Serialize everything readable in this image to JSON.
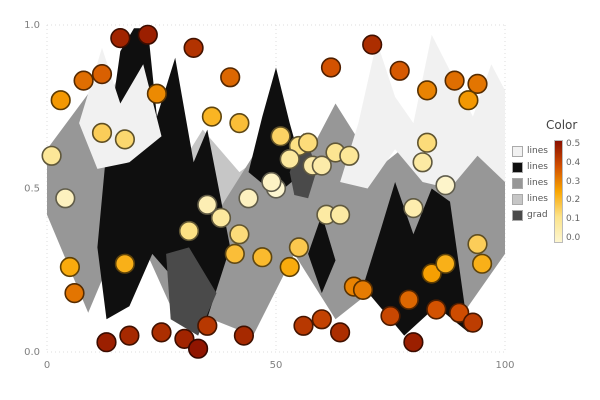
{
  "legend": {
    "title": "Color",
    "items": [
      {
        "label": "lines",
        "color": "#f1f1f1"
      },
      {
        "label": "lines",
        "color": "#0f0f0f"
      },
      {
        "label": "lines",
        "color": "#979797"
      },
      {
        "label": "lines",
        "color": "#c6c6c6"
      },
      {
        "label": "grad",
        "color": "#4a4a4a"
      }
    ],
    "colorbar": {
      "ticks": [
        "0.5",
        "0.4",
        "0.3",
        "0.2",
        "0.1",
        "0.0"
      ],
      "min": 0.0,
      "max": 0.5,
      "stops": [
        {
          "v": 0.0,
          "color": "#fdf6d0"
        },
        {
          "v": 0.125,
          "color": "#fce38a"
        },
        {
          "v": 0.25,
          "color": "#f9a602"
        },
        {
          "v": 0.375,
          "color": "#d14f01"
        },
        {
          "v": 0.5,
          "color": "#8a1000"
        }
      ]
    }
  },
  "chart_data": {
    "type": "scatter",
    "title": "",
    "xlabel": "",
    "ylabel": "",
    "grid": true,
    "axes": {
      "x": {
        "range": [
          0,
          100
        ],
        "ticks": [
          0,
          50,
          100
        ],
        "tick_labels": [
          "0",
          "50",
          "100"
        ]
      },
      "y": {
        "range": [
          0,
          1
        ],
        "ticks": [
          0,
          0.5,
          1
        ],
        "tick_labels": [
          "0.0",
          "0.5",
          "1.0"
        ]
      }
    },
    "points": [
      {
        "x": 16,
        "y": 0.96,
        "c": 0.46
      },
      {
        "x": 22,
        "y": 0.97,
        "c": 0.47
      },
      {
        "x": 12,
        "y": 0.85,
        "c": 0.35
      },
      {
        "x": 32,
        "y": 0.93,
        "c": 0.43
      },
      {
        "x": 24,
        "y": 0.79,
        "c": 0.29
      },
      {
        "x": 3,
        "y": 0.77,
        "c": 0.27
      },
      {
        "x": 8,
        "y": 0.83,
        "c": 0.33
      },
      {
        "x": 40,
        "y": 0.84,
        "c": 0.34
      },
      {
        "x": 71,
        "y": 0.94,
        "c": 0.44
      },
      {
        "x": 62,
        "y": 0.87,
        "c": 0.37
      },
      {
        "x": 77,
        "y": 0.86,
        "c": 0.36
      },
      {
        "x": 83,
        "y": 0.8,
        "c": 0.3
      },
      {
        "x": 89,
        "y": 0.83,
        "c": 0.33
      },
      {
        "x": 94,
        "y": 0.82,
        "c": 0.32
      },
      {
        "x": 92,
        "y": 0.77,
        "c": 0.27
      },
      {
        "x": 36,
        "y": 0.72,
        "c": 0.22
      },
      {
        "x": 42,
        "y": 0.7,
        "c": 0.2
      },
      {
        "x": 12,
        "y": 0.67,
        "c": 0.17
      },
      {
        "x": 17,
        "y": 0.65,
        "c": 0.15
      },
      {
        "x": 1,
        "y": 0.6,
        "c": 0.1
      },
      {
        "x": 51,
        "y": 0.66,
        "c": 0.16
      },
      {
        "x": 55,
        "y": 0.63,
        "c": 0.13
      },
      {
        "x": 57,
        "y": 0.64,
        "c": 0.14
      },
      {
        "x": 63,
        "y": 0.61,
        "c": 0.11
      },
      {
        "x": 66,
        "y": 0.6,
        "c": 0.1
      },
      {
        "x": 53,
        "y": 0.59,
        "c": 0.09
      },
      {
        "x": 83,
        "y": 0.64,
        "c": 0.14
      },
      {
        "x": 58,
        "y": 0.57,
        "c": 0.07
      },
      {
        "x": 60,
        "y": 0.57,
        "c": 0.07
      },
      {
        "x": 4,
        "y": 0.47,
        "c": 0.03
      },
      {
        "x": 50,
        "y": 0.5,
        "c": 0.0
      },
      {
        "x": 49,
        "y": 0.52,
        "c": 0.02
      },
      {
        "x": 82,
        "y": 0.58,
        "c": 0.08
      },
      {
        "x": 87,
        "y": 0.51,
        "c": 0.01
      },
      {
        "x": 80,
        "y": 0.44,
        "c": 0.06
      },
      {
        "x": 61,
        "y": 0.42,
        "c": 0.08
      },
      {
        "x": 64,
        "y": 0.42,
        "c": 0.08
      },
      {
        "x": 38,
        "y": 0.41,
        "c": 0.09
      },
      {
        "x": 31,
        "y": 0.37,
        "c": 0.13
      },
      {
        "x": 44,
        "y": 0.47,
        "c": 0.03
      },
      {
        "x": 35,
        "y": 0.45,
        "c": 0.05
      },
      {
        "x": 42,
        "y": 0.36,
        "c": 0.14
      },
      {
        "x": 41,
        "y": 0.3,
        "c": 0.2
      },
      {
        "x": 17,
        "y": 0.27,
        "c": 0.23
      },
      {
        "x": 5,
        "y": 0.26,
        "c": 0.24
      },
      {
        "x": 6,
        "y": 0.18,
        "c": 0.32
      },
      {
        "x": 53,
        "y": 0.26,
        "c": 0.24
      },
      {
        "x": 55,
        "y": 0.32,
        "c": 0.18
      },
      {
        "x": 84,
        "y": 0.24,
        "c": 0.26
      },
      {
        "x": 87,
        "y": 0.27,
        "c": 0.23
      },
      {
        "x": 94,
        "y": 0.33,
        "c": 0.17
      },
      {
        "x": 95,
        "y": 0.27,
        "c": 0.23
      },
      {
        "x": 67,
        "y": 0.2,
        "c": 0.3
      },
      {
        "x": 69,
        "y": 0.19,
        "c": 0.31
      },
      {
        "x": 79,
        "y": 0.16,
        "c": 0.34
      },
      {
        "x": 47,
        "y": 0.29,
        "c": 0.21
      },
      {
        "x": 85,
        "y": 0.13,
        "c": 0.37
      },
      {
        "x": 90,
        "y": 0.12,
        "c": 0.38
      },
      {
        "x": 93,
        "y": 0.09,
        "c": 0.41
      },
      {
        "x": 80,
        "y": 0.03,
        "c": 0.47
      },
      {
        "x": 75,
        "y": 0.11,
        "c": 0.39
      },
      {
        "x": 64,
        "y": 0.06,
        "c": 0.44
      },
      {
        "x": 56,
        "y": 0.08,
        "c": 0.42
      },
      {
        "x": 43,
        "y": 0.05,
        "c": 0.45
      },
      {
        "x": 35,
        "y": 0.08,
        "c": 0.42
      },
      {
        "x": 30,
        "y": 0.04,
        "c": 0.46
      },
      {
        "x": 25,
        "y": 0.06,
        "c": 0.44
      },
      {
        "x": 13,
        "y": 0.03,
        "c": 0.47
      },
      {
        "x": 18,
        "y": 0.05,
        "c": 0.45
      },
      {
        "x": 33,
        "y": 0.01,
        "c": 0.49
      },
      {
        "x": 60,
        "y": 0.1,
        "c": 0.4
      }
    ],
    "polygons": [
      {
        "series": "lines",
        "color": "#c6c6c6",
        "pts": [
          [
            0,
            0.57
          ],
          [
            8,
            0.63
          ],
          [
            17,
            0.88
          ],
          [
            26,
            0.5
          ],
          [
            34,
            0.68
          ],
          [
            42,
            0.55
          ],
          [
            50,
            0.63
          ],
          [
            58,
            0.5
          ],
          [
            66,
            0.6
          ],
          [
            75,
            0.52
          ],
          [
            84,
            0.6
          ],
          [
            92,
            0.55
          ],
          [
            100,
            0.5
          ],
          [
            100,
            0.38
          ],
          [
            92,
            0.33
          ],
          [
            84,
            0.24
          ],
          [
            75,
            0.35
          ],
          [
            66,
            0.3
          ],
          [
            58,
            0.35
          ],
          [
            50,
            0.42
          ],
          [
            42,
            0.32
          ],
          [
            34,
            0.27
          ],
          [
            26,
            0.45
          ],
          [
            17,
            0.36
          ],
          [
            8,
            0.4
          ],
          [
            0,
            0.44
          ]
        ]
      },
      {
        "series": "lines",
        "color": "#979797",
        "pts": [
          [
            0,
            0.62
          ],
          [
            9,
            0.79
          ],
          [
            18,
            0.52
          ],
          [
            27,
            0.73
          ],
          [
            36,
            0.4
          ],
          [
            45,
            0.6
          ],
          [
            54,
            0.52
          ],
          [
            63,
            0.76
          ],
          [
            72,
            0.56
          ],
          [
            81,
            0.66
          ],
          [
            90,
            0.68
          ],
          [
            100,
            0.53
          ],
          [
            100,
            0.3
          ],
          [
            90,
            0.1
          ],
          [
            81,
            0.28
          ],
          [
            72,
            0.2
          ],
          [
            63,
            0.1
          ],
          [
            54,
            0.3
          ],
          [
            45,
            0.05
          ],
          [
            36,
            0.1
          ],
          [
            27,
            0.14
          ],
          [
            18,
            0.42
          ],
          [
            9,
            0.12
          ],
          [
            0,
            0.42
          ]
        ]
      },
      {
        "series": "lines",
        "color": "#0f0f0f",
        "pts": [
          [
            11,
            0.32
          ],
          [
            13,
            0.62
          ],
          [
            16,
            0.92
          ],
          [
            19,
            0.99
          ],
          [
            22,
            0.99
          ],
          [
            24,
            0.72
          ],
          [
            28,
            0.9
          ],
          [
            32,
            0.58
          ],
          [
            35,
            0.68
          ],
          [
            40,
            0.32
          ],
          [
            34,
            0.06
          ],
          [
            28,
            0.22
          ],
          [
            23,
            0.3
          ],
          [
            18,
            0.14
          ],
          [
            13,
            0.1
          ]
        ]
      },
      {
        "series": "lines",
        "color": "#0f0f0f",
        "pts": [
          [
            44,
            0.55
          ],
          [
            47,
            0.72
          ],
          [
            50,
            0.87
          ],
          [
            53,
            0.7
          ],
          [
            56,
            0.55
          ],
          [
            50,
            0.48
          ]
        ]
      },
      {
        "series": "lines",
        "color": "#0f0f0f",
        "pts": [
          [
            69,
            0.2
          ],
          [
            73,
            0.38
          ],
          [
            76,
            0.52
          ],
          [
            80,
            0.36
          ],
          [
            84,
            0.5
          ],
          [
            88,
            0.46
          ],
          [
            92,
            0.06
          ],
          [
            85,
            0.14
          ],
          [
            78,
            0.05
          ]
        ]
      },
      {
        "series": "lines",
        "color": "#0f0f0f",
        "pts": [
          [
            57,
            0.3
          ],
          [
            60,
            0.42
          ],
          [
            63,
            0.28
          ],
          [
            60,
            0.18
          ]
        ]
      },
      {
        "series": "lines",
        "color": "#f1f1f1",
        "pts": [
          [
            64,
            0.52
          ],
          [
            68,
            0.7
          ],
          [
            72,
            0.95
          ],
          [
            76,
            0.78
          ],
          [
            80,
            0.7
          ],
          [
            84,
            0.97
          ],
          [
            88,
            0.86
          ],
          [
            93,
            0.72
          ],
          [
            97,
            0.88
          ],
          [
            100,
            0.8
          ],
          [
            100,
            0.52
          ],
          [
            94,
            0.6
          ],
          [
            88,
            0.5
          ],
          [
            82,
            0.52
          ],
          [
            76,
            0.62
          ],
          [
            70,
            0.5
          ]
        ]
      },
      {
        "series": "lines",
        "color": "#f1f1f1",
        "pts": [
          [
            7,
            0.7
          ],
          [
            12,
            0.93
          ],
          [
            16,
            0.76
          ],
          [
            21,
            0.88
          ],
          [
            25,
            0.66
          ],
          [
            18,
            0.58
          ],
          [
            11,
            0.56
          ]
        ]
      },
      {
        "series": "grad",
        "color": "#4a4a4a",
        "pts": [
          [
            53,
            0.55
          ],
          [
            56,
            0.67
          ],
          [
            59,
            0.56
          ],
          [
            57,
            0.47
          ],
          [
            54,
            0.48
          ]
        ]
      },
      {
        "series": "grad",
        "color": "#4a4a4a",
        "pts": [
          [
            26,
            0.3
          ],
          [
            31,
            0.32
          ],
          [
            37,
            0.18
          ],
          [
            33,
            0.05
          ],
          [
            27,
            0.1
          ]
        ]
      }
    ]
  }
}
